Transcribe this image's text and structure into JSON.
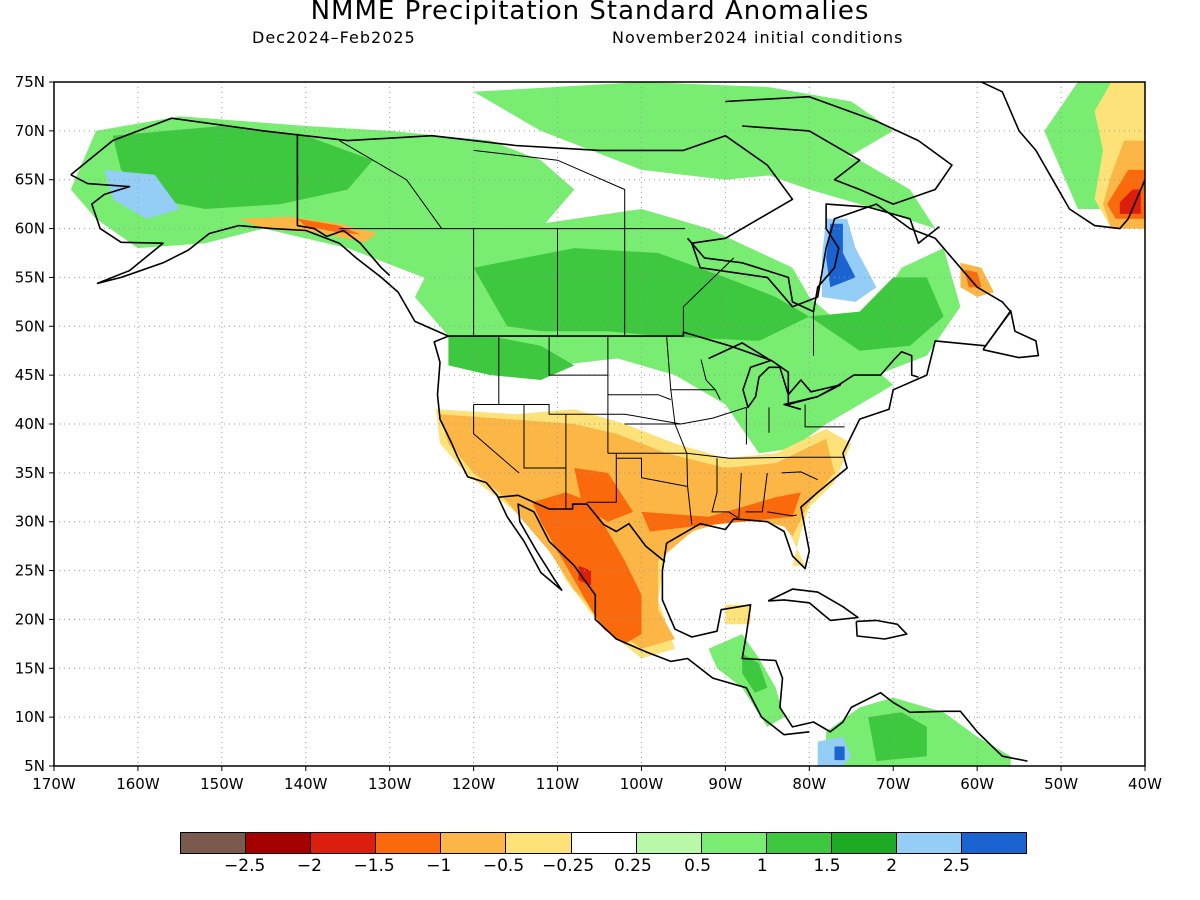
{
  "header": {
    "title": "NMME Precipitation Standard Anomalies",
    "period": "Dec2024–Feb2025",
    "init": "November2024 initial conditions"
  },
  "map": {
    "lon_min": -170,
    "lon_max": -40,
    "lat_min": 5,
    "lat_max": 75,
    "lon_ticks": [
      {
        "v": -170,
        "label": "170W"
      },
      {
        "v": -160,
        "label": "160W"
      },
      {
        "v": -150,
        "label": "150W"
      },
      {
        "v": -140,
        "label": "140W"
      },
      {
        "v": -130,
        "label": "130W"
      },
      {
        "v": -120,
        "label": "120W"
      },
      {
        "v": -110,
        "label": "110W"
      },
      {
        "v": -100,
        "label": "100W"
      },
      {
        "v": -90,
        "label": "90W"
      },
      {
        "v": -80,
        "label": "80W"
      },
      {
        "v": -70,
        "label": "70W"
      },
      {
        "v": -60,
        "label": "60W"
      },
      {
        "v": -50,
        "label": "50W"
      },
      {
        "v": -40,
        "label": "40W"
      }
    ],
    "lat_ticks": [
      {
        "v": 75,
        "label": "75N"
      },
      {
        "v": 70,
        "label": "70N"
      },
      {
        "v": 65,
        "label": "65N"
      },
      {
        "v": 60,
        "label": "60N"
      },
      {
        "v": 55,
        "label": "55N"
      },
      {
        "v": 50,
        "label": "50N"
      },
      {
        "v": 45,
        "label": "45N"
      },
      {
        "v": 40,
        "label": "40N"
      },
      {
        "v": 35,
        "label": "35N"
      },
      {
        "v": 30,
        "label": "30N"
      },
      {
        "v": 25,
        "label": "25N"
      },
      {
        "v": 20,
        "label": "20N"
      },
      {
        "v": 15,
        "label": "15N"
      },
      {
        "v": 10,
        "label": "10N"
      },
      {
        "v": 5,
        "label": "5N"
      }
    ]
  },
  "legend": {
    "colors": [
      "#7b5a4e",
      "#a50000",
      "#dc1e0f",
      "#fa6a0c",
      "#fbb645",
      "#fde27a",
      "#ffffff",
      "#b8f8a8",
      "#79ec72",
      "#3ec83f",
      "#1faa25",
      "#94cdf5",
      "#1a64d2"
    ],
    "labels": [
      "−2.5",
      "−2",
      "−1.5",
      "−1",
      "−0.5",
      "−0.25",
      "0.25",
      "0.5",
      "1",
      "1.5",
      "2",
      "2.5"
    ]
  }
}
